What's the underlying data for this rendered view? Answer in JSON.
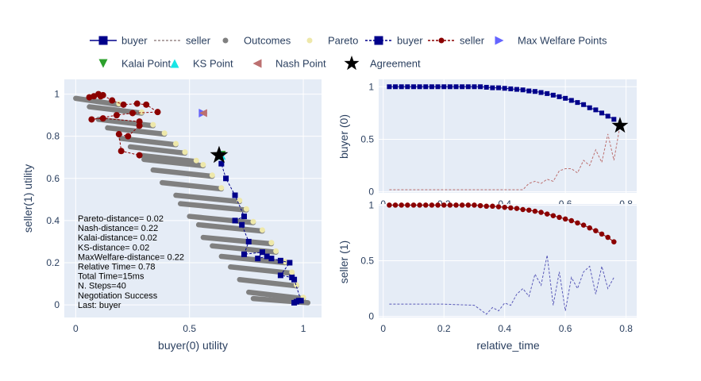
{
  "colors": {
    "plot_bg": "#e5ecf6",
    "grid": "#ffffff",
    "text": "#2a3f5f",
    "buyer": "#00008b",
    "seller": "#8b0000",
    "outcome": "#808080",
    "pareto": "#eee8aa",
    "welfare": "#6464ff",
    "kalai": "#2ca02c",
    "ks": "#17e5e5",
    "nash": "#bc7070",
    "agreement": "#000000"
  },
  "legend": {
    "row1": [
      {
        "label": "buyer",
        "kind": "line-marker",
        "color": "#00008b",
        "marker": "square",
        "dash": "solid"
      },
      {
        "label": "seller",
        "kind": "line",
        "color": "#9a8a8a",
        "dash": "dash"
      },
      {
        "label": "Outcomes",
        "kind": "marker",
        "color": "#808080",
        "marker": "circle"
      },
      {
        "label": "Pareto",
        "kind": "marker",
        "color": "#eee8aa",
        "marker": "circle"
      },
      {
        "label": "buyer",
        "kind": "line-marker",
        "color": "#00008b",
        "marker": "square",
        "dash": "dash"
      },
      {
        "label": "seller",
        "kind": "line-marker",
        "color": "#8b0000",
        "marker": "circle",
        "dash": "dash"
      },
      {
        "label": "Max Welfare Points",
        "kind": "marker",
        "color": "#6464ff",
        "marker": "triangle-right"
      }
    ],
    "row2": [
      {
        "label": "Kalai Point",
        "kind": "marker",
        "color": "#2ca02c",
        "marker": "triangle-down"
      },
      {
        "label": "KS Point",
        "kind": "marker",
        "color": "#17e5e5",
        "marker": "triangle-up"
      },
      {
        "label": "Nash Point",
        "kind": "marker",
        "color": "#bc7070",
        "marker": "triangle-left"
      },
      {
        "label": "Agreement",
        "kind": "marker",
        "color": "#000000",
        "marker": "star"
      }
    ]
  },
  "info": [
    "Pareto-distance= 0.02",
    "Nash-distance= 0.22",
    "Kalai-distance= 0.02",
    "KS-distance= 0.02",
    "MaxWelfare-distance= 0.22",
    "Relative Time= 0.78",
    "Total Time=15ms",
    "N. Steps=40",
    "Negotiation Success",
    "Last: buyer"
  ],
  "chart_data": [
    {
      "type": "scatter",
      "id": "utility-space",
      "xlabel": "buyer(0) utility",
      "ylabel": "seller(1) utility",
      "xlim": [
        -0.05,
        1.08
      ],
      "ylim": [
        -0.06,
        1.07
      ],
      "xticks": [
        0,
        0.5,
        1
      ],
      "yticks": [
        0,
        0.2,
        0.4,
        0.6,
        0.8,
        1
      ],
      "outcome_bands": [
        {
          "x": [
            0.0,
            0.19
          ],
          "y": [
            0.98,
            0.95
          ]
        },
        {
          "x": [
            0.06,
            0.29
          ],
          "y": [
            0.94,
            0.91
          ]
        },
        {
          "x": [
            0.1,
            0.34
          ],
          "y": [
            0.88,
            0.85
          ]
        },
        {
          "x": [
            0.14,
            0.39
          ],
          "y": [
            0.84,
            0.81
          ]
        },
        {
          "x": [
            0.2,
            0.44
          ],
          "y": [
            0.79,
            0.76
          ]
        },
        {
          "x": [
            0.24,
            0.48
          ],
          "y": [
            0.75,
            0.72
          ]
        },
        {
          "x": [
            0.28,
            0.53
          ],
          "y": [
            0.71,
            0.68
          ]
        },
        {
          "x": [
            0.3,
            0.56
          ],
          "y": [
            0.69,
            0.66
          ]
        },
        {
          "x": [
            0.34,
            0.6
          ],
          "y": [
            0.64,
            0.61
          ]
        },
        {
          "x": [
            0.38,
            0.64
          ],
          "y": [
            0.58,
            0.55
          ]
        },
        {
          "x": [
            0.44,
            0.72
          ],
          "y": [
            0.52,
            0.49
          ]
        },
        {
          "x": [
            0.46,
            0.75
          ],
          "y": [
            0.48,
            0.45
          ]
        },
        {
          "x": [
            0.5,
            0.78
          ],
          "y": [
            0.42,
            0.39
          ]
        },
        {
          "x": [
            0.54,
            0.82
          ],
          "y": [
            0.38,
            0.35
          ]
        },
        {
          "x": [
            0.56,
            0.86
          ],
          "y": [
            0.32,
            0.29
          ]
        },
        {
          "x": [
            0.6,
            0.88
          ],
          "y": [
            0.28,
            0.25
          ]
        },
        {
          "x": [
            0.64,
            0.92
          ],
          "y": [
            0.23,
            0.2
          ]
        },
        {
          "x": [
            0.68,
            0.95
          ],
          "y": [
            0.18,
            0.15
          ]
        },
        {
          "x": [
            0.72,
            0.97
          ],
          "y": [
            0.12,
            0.09
          ]
        },
        {
          "x": [
            0.76,
            1.0
          ],
          "y": [
            0.06,
            0.03
          ]
        },
        {
          "x": [
            0.78,
            1.02
          ],
          "y": [
            0.03,
            0.01
          ]
        }
      ],
      "pareto": [
        {
          "x": 0.19,
          "y": 0.955
        },
        {
          "x": 0.29,
          "y": 0.915
        },
        {
          "x": 0.34,
          "y": 0.855
        },
        {
          "x": 0.39,
          "y": 0.815
        },
        {
          "x": 0.44,
          "y": 0.765
        },
        {
          "x": 0.48,
          "y": 0.725
        },
        {
          "x": 0.53,
          "y": 0.685
        },
        {
          "x": 0.56,
          "y": 0.665
        },
        {
          "x": 0.6,
          "y": 0.615
        },
        {
          "x": 0.64,
          "y": 0.555
        },
        {
          "x": 0.72,
          "y": 0.495
        },
        {
          "x": 0.75,
          "y": 0.455
        },
        {
          "x": 0.78,
          "y": 0.395
        },
        {
          "x": 0.82,
          "y": 0.355
        },
        {
          "x": 0.86,
          "y": 0.295
        },
        {
          "x": 0.88,
          "y": 0.255
        },
        {
          "x": 0.92,
          "y": 0.205
        },
        {
          "x": 0.95,
          "y": 0.155
        },
        {
          "x": 0.97,
          "y": 0.095
        },
        {
          "x": 1.0,
          "y": 0.035
        }
      ],
      "buyer_offers": [
        {
          "x": 0.96,
          "y": 0.01
        },
        {
          "x": 0.97,
          "y": 0.015
        },
        {
          "x": 0.98,
          "y": 0.02
        },
        {
          "x": 0.99,
          "y": 0.02
        },
        {
          "x": 0.96,
          "y": 0.12
        },
        {
          "x": 0.95,
          "y": 0.13
        },
        {
          "x": 0.9,
          "y": 0.14
        },
        {
          "x": 0.94,
          "y": 0.2
        },
        {
          "x": 0.9,
          "y": 0.21
        },
        {
          "x": 0.86,
          "y": 0.22
        },
        {
          "x": 0.84,
          "y": 0.23
        },
        {
          "x": 0.8,
          "y": 0.22
        },
        {
          "x": 0.82,
          "y": 0.25
        },
        {
          "x": 0.74,
          "y": 0.24
        },
        {
          "x": 0.76,
          "y": 0.3
        },
        {
          "x": 0.73,
          "y": 0.38
        },
        {
          "x": 0.7,
          "y": 0.4
        },
        {
          "x": 0.74,
          "y": 0.42
        },
        {
          "x": 0.7,
          "y": 0.52
        },
        {
          "x": 0.66,
          "y": 0.6
        },
        {
          "x": 0.64,
          "y": 0.67
        }
      ],
      "seller_offers": [
        {
          "x": 0.06,
          "y": 0.985
        },
        {
          "x": 0.08,
          "y": 0.99
        },
        {
          "x": 0.1,
          "y": 1.0
        },
        {
          "x": 0.11,
          "y": 0.99
        },
        {
          "x": 0.12,
          "y": 0.995
        },
        {
          "x": 0.16,
          "y": 0.97
        },
        {
          "x": 0.21,
          "y": 0.95
        },
        {
          "x": 0.27,
          "y": 0.955
        },
        {
          "x": 0.31,
          "y": 0.95
        },
        {
          "x": 0.36,
          "y": 0.915
        },
        {
          "x": 0.25,
          "y": 0.91
        },
        {
          "x": 0.18,
          "y": 0.9
        },
        {
          "x": 0.07,
          "y": 0.88
        },
        {
          "x": 0.12,
          "y": 0.885
        },
        {
          "x": 0.28,
          "y": 0.87
        },
        {
          "x": 0.28,
          "y": 0.85
        },
        {
          "x": 0.23,
          "y": 0.8
        },
        {
          "x": 0.19,
          "y": 0.81
        },
        {
          "x": 0.2,
          "y": 0.73
        },
        {
          "x": 0.28,
          "y": 0.71
        }
      ],
      "max_welfare": {
        "x": 0.56,
        "y": 0.91
      },
      "kalai_point": {
        "x": 0.64,
        "y": 0.71
      },
      "ks_point": {
        "x": 0.64,
        "y": 0.71
      },
      "nash_point": {
        "x": 0.56,
        "y": 0.91
      },
      "agreement": {
        "x": 0.63,
        "y": 0.71
      }
    },
    {
      "type": "line",
      "id": "buyer-time",
      "xlabel": "",
      "ylabel": "buyer (0)",
      "xlim": [
        -0.015,
        0.835
      ],
      "ylim": [
        -0.01,
        1.07
      ],
      "xticks": [
        0,
        0.2,
        0.4,
        0.6,
        0.8
      ],
      "yticks": [
        0,
        0.5,
        1
      ],
      "buyer_offers": {
        "x": [
          0.02,
          0.04,
          0.06,
          0.08,
          0.1,
          0.12,
          0.14,
          0.16,
          0.18,
          0.2,
          0.22,
          0.24,
          0.26,
          0.28,
          0.3,
          0.32,
          0.34,
          0.36,
          0.38,
          0.4,
          0.42,
          0.44,
          0.46,
          0.48,
          0.5,
          0.52,
          0.54,
          0.56,
          0.58,
          0.6,
          0.62,
          0.64,
          0.66,
          0.68,
          0.7,
          0.72,
          0.74,
          0.76
        ],
        "y": [
          1.0,
          1.0,
          1.0,
          1.0,
          1.0,
          1.0,
          1.0,
          1.0,
          1.0,
          1.0,
          1.0,
          1.0,
          1.0,
          1.0,
          1.0,
          1.0,
          0.995,
          0.99,
          0.99,
          0.985,
          0.98,
          0.975,
          0.97,
          0.96,
          0.955,
          0.945,
          0.935,
          0.92,
          0.905,
          0.89,
          0.87,
          0.85,
          0.83,
          0.8,
          0.78,
          0.75,
          0.72,
          0.69
        ]
      },
      "seller_offers": {
        "x": [
          0.02,
          0.1,
          0.2,
          0.3,
          0.4,
          0.46,
          0.48,
          0.5,
          0.52,
          0.54,
          0.56,
          0.58,
          0.6,
          0.62,
          0.64,
          0.66,
          0.68,
          0.7,
          0.72,
          0.74,
          0.76,
          0.78
        ],
        "y": [
          0.02,
          0.02,
          0.02,
          0.02,
          0.02,
          0.02,
          0.08,
          0.1,
          0.08,
          0.12,
          0.1,
          0.2,
          0.22,
          0.22,
          0.18,
          0.3,
          0.25,
          0.4,
          0.28,
          0.55,
          0.3,
          0.63
        ]
      },
      "agreement": {
        "x": 0.78,
        "y": 0.63
      }
    },
    {
      "type": "line",
      "id": "seller-time",
      "xlabel": "relative_time",
      "ylabel": "seller (1)",
      "xlim": [
        -0.015,
        0.835
      ],
      "ylim": [
        -0.01,
        1.01
      ],
      "xticks": [
        0,
        0.2,
        0.4,
        0.6,
        0.8
      ],
      "yticks": [
        0,
        0.5,
        1
      ],
      "seller_offers": {
        "x": [
          0.02,
          0.04,
          0.06,
          0.08,
          0.1,
          0.12,
          0.14,
          0.16,
          0.18,
          0.2,
          0.22,
          0.24,
          0.26,
          0.28,
          0.3,
          0.32,
          0.34,
          0.36,
          0.38,
          0.4,
          0.42,
          0.44,
          0.46,
          0.48,
          0.5,
          0.52,
          0.54,
          0.56,
          0.58,
          0.6,
          0.62,
          0.64,
          0.66,
          0.68,
          0.7,
          0.72,
          0.74,
          0.76
        ],
        "y": [
          1.0,
          1.0,
          1.0,
          1.0,
          1.0,
          1.0,
          1.0,
          1.0,
          1.0,
          1.0,
          1.0,
          1.0,
          1.0,
          1.0,
          1.0,
          0.995,
          0.99,
          0.99,
          0.985,
          0.98,
          0.975,
          0.97,
          0.96,
          0.955,
          0.945,
          0.935,
          0.92,
          0.905,
          0.89,
          0.875,
          0.86,
          0.84,
          0.82,
          0.795,
          0.77,
          0.74,
          0.71,
          0.67
        ]
      },
      "buyer_offers": {
        "x": [
          0.02,
          0.1,
          0.2,
          0.3,
          0.34,
          0.36,
          0.38,
          0.4,
          0.42,
          0.44,
          0.46,
          0.48,
          0.5,
          0.52,
          0.54,
          0.56,
          0.58,
          0.6,
          0.62,
          0.64,
          0.66,
          0.68,
          0.7,
          0.72,
          0.74,
          0.76
        ],
        "y": [
          0.11,
          0.11,
          0.11,
          0.1,
          0.02,
          0.08,
          0.05,
          0.12,
          0.1,
          0.2,
          0.25,
          0.18,
          0.38,
          0.28,
          0.55,
          0.1,
          0.4,
          0.05,
          0.35,
          0.25,
          0.4,
          0.45,
          0.2,
          0.45,
          0.25,
          0.35
        ]
      }
    }
  ]
}
